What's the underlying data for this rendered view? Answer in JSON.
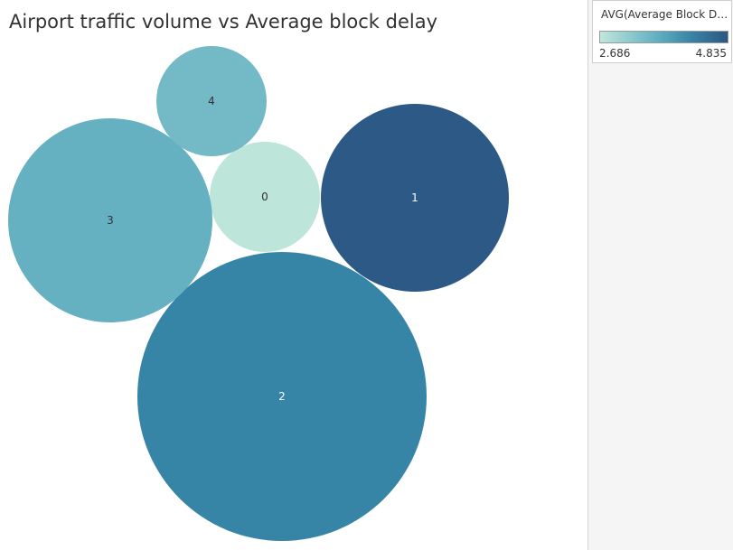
{
  "chart_data": {
    "type": "packed-bubble",
    "title": "Airport traffic volume vs Average block delay",
    "color_legend": {
      "title": "AVG(Average Block Del...",
      "min": 2.686,
      "max": 4.835,
      "min_label": "2.686",
      "max_label": "4.835",
      "min_color": "#c0e6dc",
      "max_color": "#2b5782"
    },
    "bubbles": [
      {
        "label": "0",
        "size": 1.0,
        "avg_block_delay": 2.69,
        "color": "#bde5da",
        "text_color": "#333333"
      },
      {
        "label": "1",
        "size": 3.0,
        "avg_block_delay": 4.83,
        "color": "#2d5986",
        "text_color": "#ffffff"
      },
      {
        "label": "2",
        "size": 7.0,
        "avg_block_delay": 3.95,
        "color": "#3785a6",
        "text_color": "#ffffff"
      },
      {
        "label": "3",
        "size": 3.45,
        "avg_block_delay": 3.45,
        "color": "#65b1c2",
        "text_color": "#333333"
      },
      {
        "label": "4",
        "size": 1.0,
        "avg_block_delay": 3.3,
        "color": "#73b9c6",
        "text_color": "#333333"
      }
    ]
  }
}
